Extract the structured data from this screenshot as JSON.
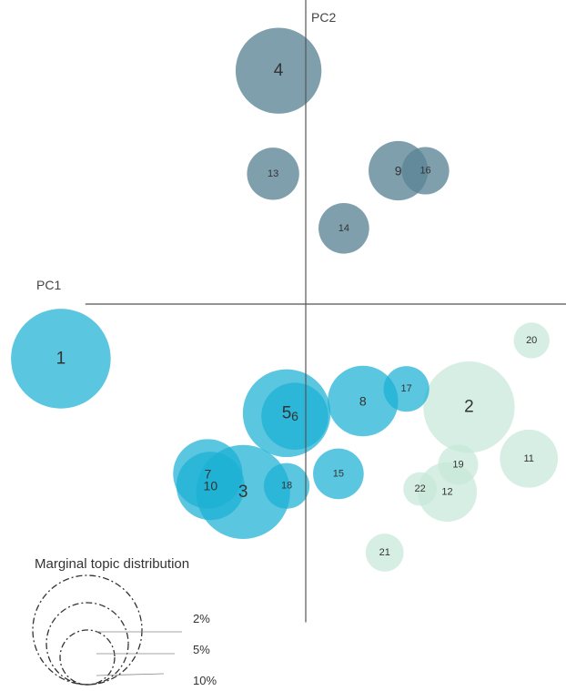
{
  "chart_data": {
    "type": "scatter",
    "title": "",
    "xlabel": "PC1",
    "ylabel": "PC2",
    "xlim": [
      -10.9,
      9.9
    ],
    "ylim": [
      -11.7,
      11.1
    ],
    "grid": false,
    "palette": {
      "upper": "#5b8496",
      "left": "#1ab0d4",
      "right": "#c8e8da"
    },
    "points": [
      {
        "label": "1",
        "x": -9.0,
        "y": -1.8,
        "size": 6.2,
        "group": "left"
      },
      {
        "label": "2",
        "x": 6.0,
        "y": -3.4,
        "size": 5.2,
        "group": "right"
      },
      {
        "label": "3",
        "x": -2.3,
        "y": -6.2,
        "size": 5.5,
        "group": "left"
      },
      {
        "label": "4",
        "x": -1.0,
        "y": 7.7,
        "size": 4.6,
        "group": "upper"
      },
      {
        "label": "5",
        "x": -0.7,
        "y": -3.6,
        "size": 4.8,
        "group": "left"
      },
      {
        "label": "6",
        "x": -0.4,
        "y": -3.7,
        "size": 2.8,
        "group": "left"
      },
      {
        "label": "7",
        "x": -3.6,
        "y": -5.6,
        "size": 3.0,
        "group": "left"
      },
      {
        "label": "8",
        "x": 2.1,
        "y": -3.2,
        "size": 3.1,
        "group": "left"
      },
      {
        "label": "9",
        "x": 3.4,
        "y": 4.4,
        "size": 2.2,
        "group": "upper"
      },
      {
        "label": "10",
        "x": -3.5,
        "y": -6.0,
        "size": 2.9,
        "group": "left"
      },
      {
        "label": "11",
        "x": 8.2,
        "y": -5.1,
        "size": 2.1,
        "group": "right"
      },
      {
        "label": "12",
        "x": 5.2,
        "y": -6.2,
        "size": 2.2,
        "group": "right"
      },
      {
        "label": "13",
        "x": -1.2,
        "y": 4.3,
        "size": 1.7,
        "group": "upper"
      },
      {
        "label": "14",
        "x": 1.4,
        "y": 2.5,
        "size": 1.6,
        "group": "upper"
      },
      {
        "label": "15",
        "x": 1.2,
        "y": -5.6,
        "size": 1.6,
        "group": "left"
      },
      {
        "label": "16",
        "x": 4.4,
        "y": 4.4,
        "size": 1.4,
        "group": "upper"
      },
      {
        "label": "17",
        "x": 3.7,
        "y": -2.8,
        "size": 1.3,
        "group": "left"
      },
      {
        "label": "18",
        "x": -0.7,
        "y": -6.0,
        "size": 1.3,
        "group": "left"
      },
      {
        "label": "19",
        "x": 5.6,
        "y": -5.3,
        "size": 1.0,
        "group": "right"
      },
      {
        "label": "20",
        "x": 8.3,
        "y": -1.2,
        "size": 0.8,
        "group": "right"
      },
      {
        "label": "21",
        "x": 2.9,
        "y": -8.2,
        "size": 0.9,
        "group": "right"
      },
      {
        "label": "22",
        "x": 4.2,
        "y": -6.1,
        "size": 0.7,
        "group": "right"
      }
    ],
    "legend": {
      "title": "Marginal topic distribution",
      "position": "bottom-left",
      "entries": [
        {
          "label": "2%",
          "size": 2
        },
        {
          "label": "5%",
          "size": 5
        },
        {
          "label": "10%",
          "size": 10
        }
      ]
    }
  }
}
